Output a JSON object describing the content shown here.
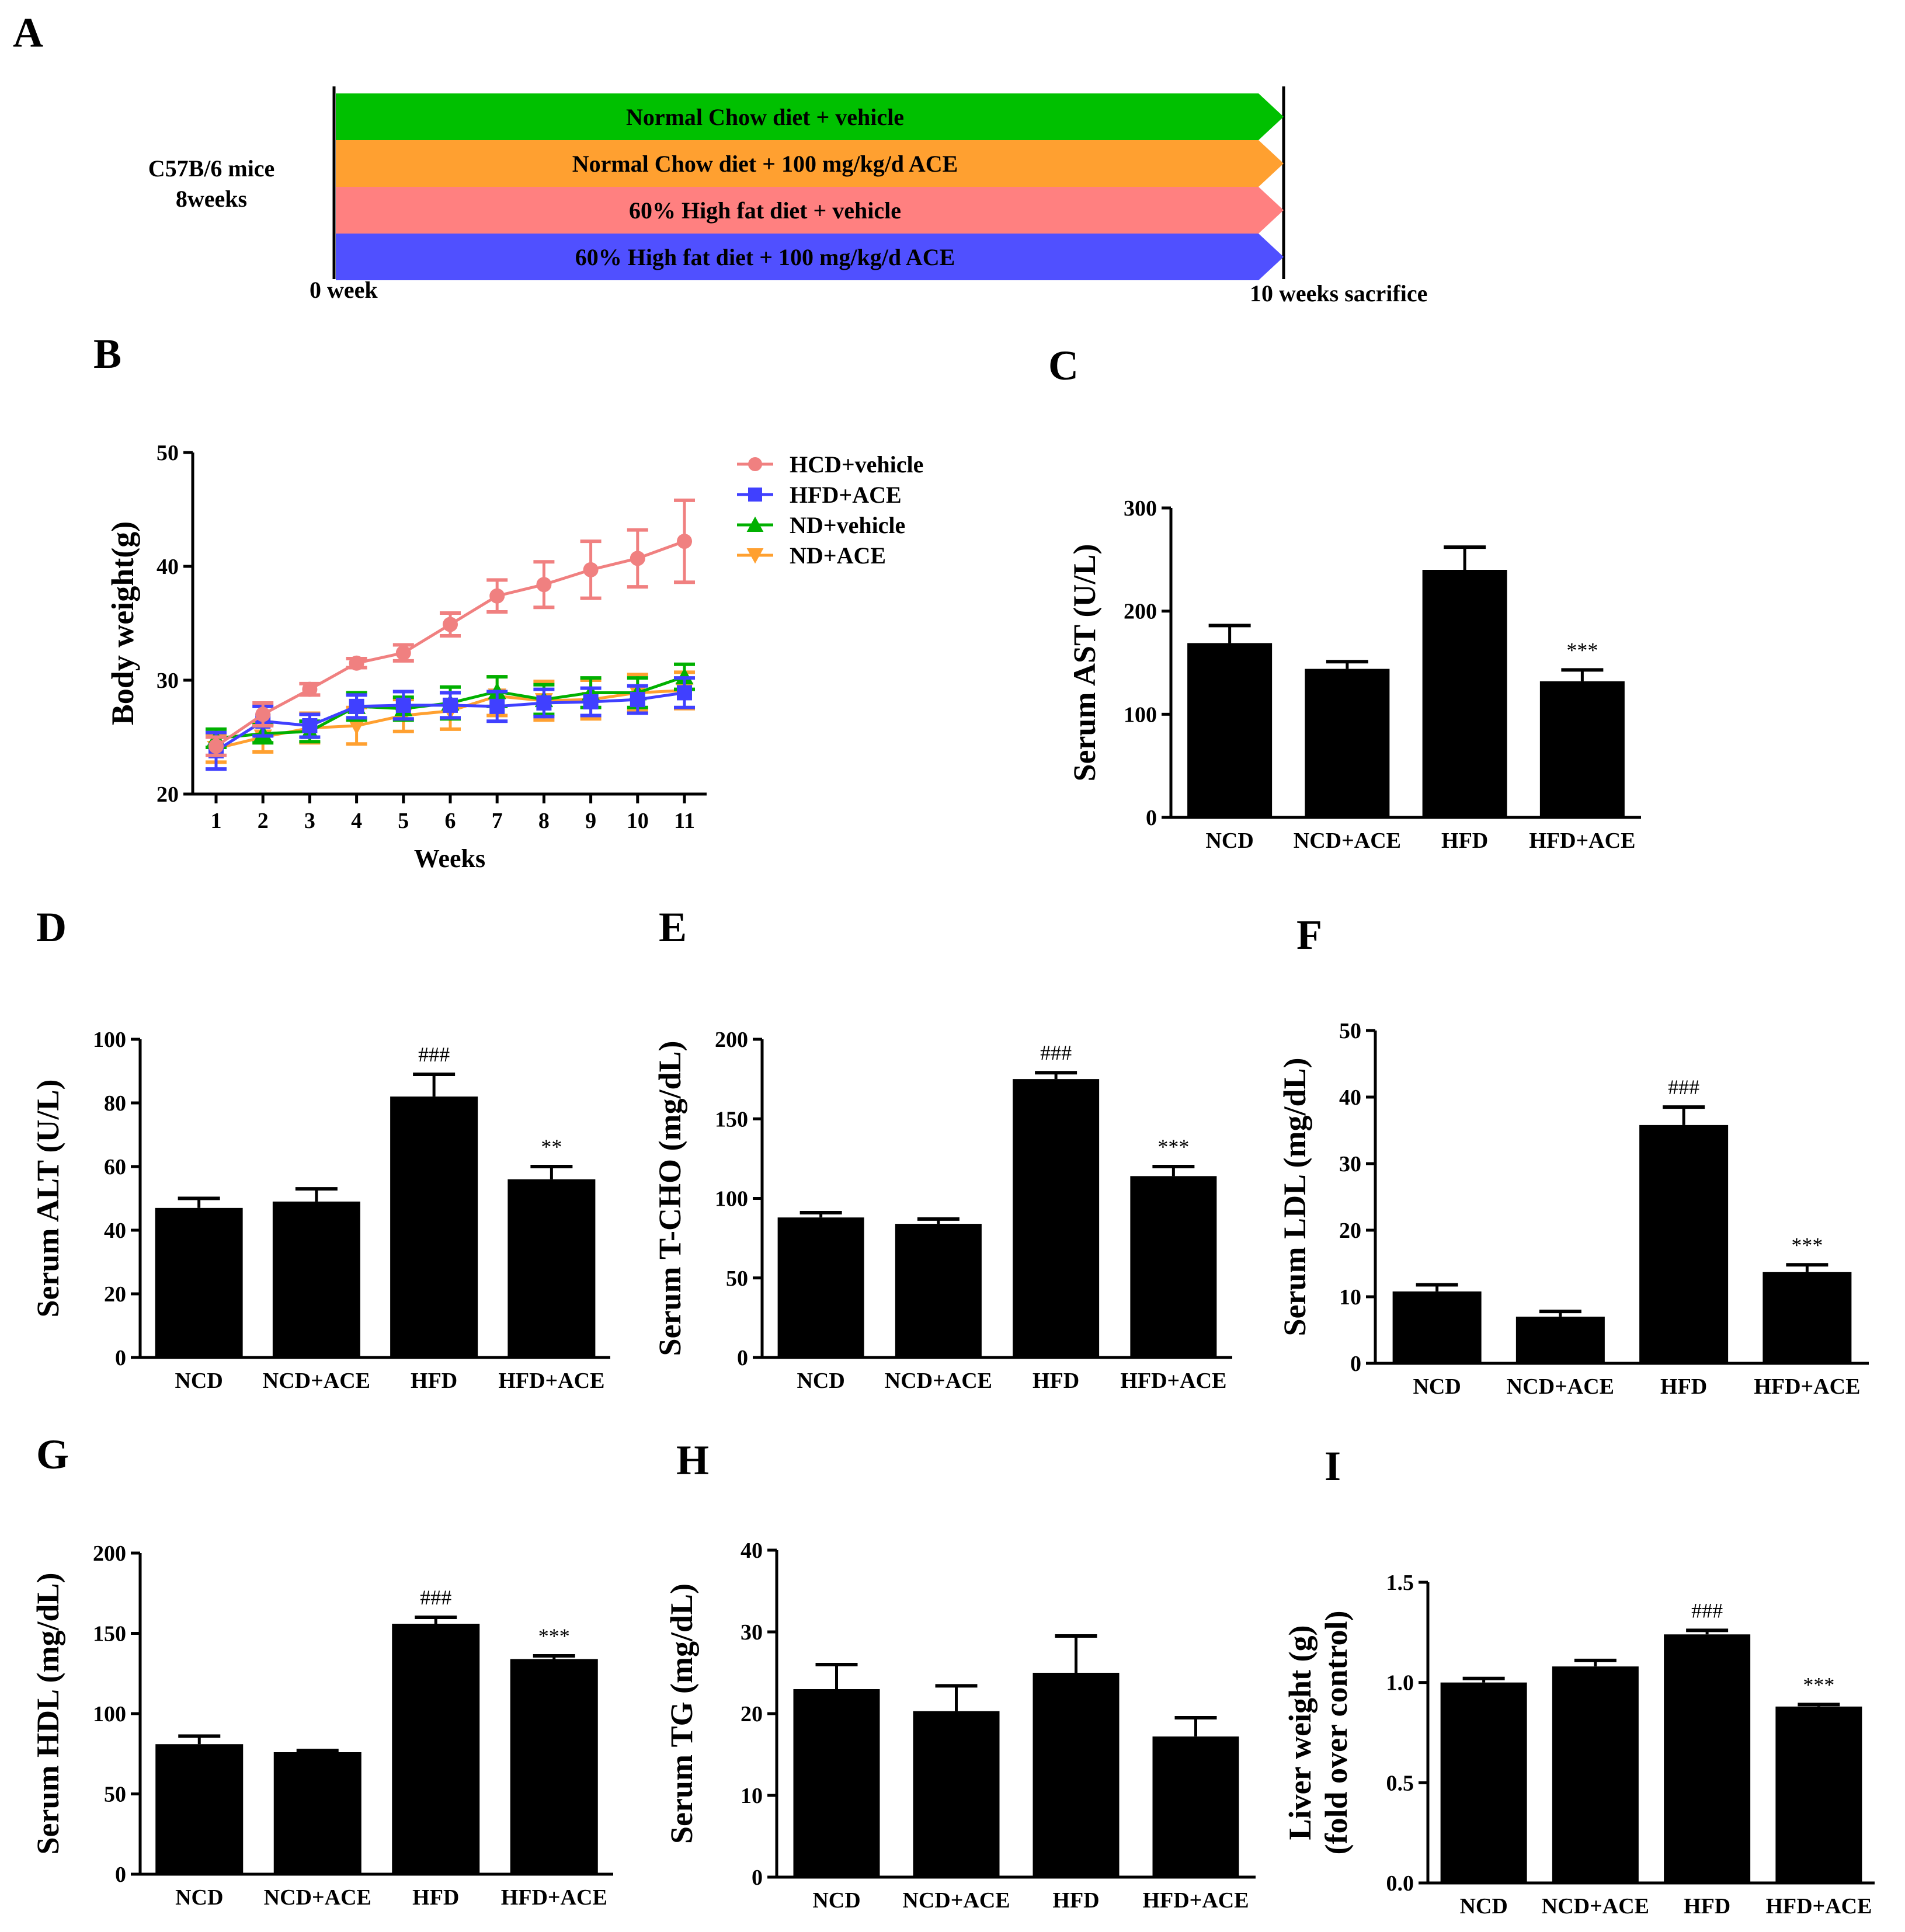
{
  "panel_labels": [
    "A",
    "B",
    "C",
    "D",
    "E",
    "F",
    "G",
    "H",
    "I"
  ],
  "scheme": {
    "subject_line1": "C57B/6 mice",
    "subject_line2": "8weeks",
    "start_label": "0 week",
    "end_label": "10 weeks sacrifice",
    "arrows": [
      {
        "label": "Normal Chow diet + vehicle",
        "color": "#00C000"
      },
      {
        "label": "Normal Chow diet + 100 mg/kg/d ACE",
        "color": "#FFA030"
      },
      {
        "label": "60% High fat diet + vehicle",
        "color": "#FF8080"
      },
      {
        "label": "60% High fat diet + 100 mg/kg/d ACE",
        "color": "#5050FF"
      }
    ]
  },
  "chart_data": [
    {
      "panel": "B",
      "type": "line",
      "xlabel": "Weeks",
      "ylabel": "Body weight(g)",
      "x": [
        1,
        2,
        3,
        4,
        5,
        6,
        7,
        8,
        9,
        10,
        11
      ],
      "xticks": [
        "1",
        "2",
        "3",
        "4",
        "5",
        "6",
        "7",
        "8",
        "9",
        "10",
        "11"
      ],
      "ylim": [
        20,
        50
      ],
      "yticks": [
        "20",
        "30",
        "40",
        "50"
      ],
      "legend_position": "top-right",
      "series": [
        {
          "name": "HCD+vehicle",
          "color": "#F08080",
          "marker": "circle",
          "values": [
            24.2,
            27.0,
            29.2,
            31.5,
            32.4,
            34.9,
            37.4,
            38.4,
            39.7,
            40.7,
            42.2
          ],
          "errors": [
            0.8,
            1.0,
            0.5,
            0.4,
            0.7,
            1.0,
            1.4,
            2.0,
            2.5,
            2.5,
            3.6
          ]
        },
        {
          "name": "HFD+ACE",
          "color": "#4040FF",
          "marker": "square",
          "values": [
            23.8,
            26.4,
            26.0,
            27.7,
            27.8,
            27.8,
            27.7,
            28.0,
            28.1,
            28.3,
            28.9
          ],
          "errors": [
            1.6,
            1.3,
            1.0,
            1.0,
            1.2,
            1.1,
            1.3,
            1.2,
            1.2,
            1.2,
            1.3
          ]
        },
        {
          "name": "ND+vehicle",
          "color": "#00B000",
          "marker": "triangle-up",
          "values": [
            24.9,
            25.3,
            25.5,
            27.7,
            27.5,
            28.0,
            29.0,
            28.3,
            28.9,
            28.9,
            30.3
          ],
          "errors": [
            0.8,
            0.8,
            0.9,
            1.2,
            1.0,
            1.4,
            1.3,
            1.3,
            1.3,
            1.3,
            1.1
          ]
        },
        {
          "name": "ND+ACE",
          "color": "#FFA030",
          "marker": "triangle-down",
          "values": [
            24.0,
            25.0,
            25.8,
            26.0,
            26.9,
            27.3,
            28.6,
            28.2,
            28.3,
            28.9,
            29.1
          ],
          "errors": [
            1.2,
            1.3,
            1.3,
            1.6,
            1.4,
            1.6,
            1.7,
            1.7,
            1.7,
            1.6,
            1.6
          ]
        }
      ]
    },
    {
      "panel": "C",
      "type": "bar",
      "ylabel": "Serum AST (U/L)",
      "categories": [
        "NCD",
        "NCD+ACE",
        "HFD",
        "HFD+ACE"
      ],
      "values": [
        169,
        144,
        240,
        132
      ],
      "errors": [
        17,
        7,
        22,
        11
      ],
      "annotations": [
        "",
        "",
        "",
        "***"
      ],
      "ylim": [
        0,
        300
      ],
      "yticks": [
        "0",
        "100",
        "200",
        "300"
      ]
    },
    {
      "panel": "D",
      "type": "bar",
      "ylabel": "Serum ALT (U/L)",
      "categories": [
        "NCD",
        "NCD+ACE",
        "HFD",
        "HFD+ACE"
      ],
      "values": [
        47,
        49,
        82,
        56
      ],
      "errors": [
        3,
        4,
        7,
        4
      ],
      "annotations": [
        "",
        "",
        "###",
        "**"
      ],
      "ylim": [
        0,
        100
      ],
      "yticks": [
        "0",
        "20",
        "40",
        "60",
        "80",
        "100"
      ]
    },
    {
      "panel": "E",
      "type": "bar",
      "ylabel": "Serum T-CHO (mg/dL)",
      "categories": [
        "NCD",
        "NCD+ACE",
        "HFD",
        "HFD+ACE"
      ],
      "values": [
        88,
        84,
        175,
        114
      ],
      "errors": [
        3,
        3,
        4,
        6
      ],
      "annotations": [
        "",
        "",
        "###",
        "***"
      ],
      "ylim": [
        0,
        200
      ],
      "yticks": [
        "0",
        "50",
        "100",
        "150",
        "200"
      ]
    },
    {
      "panel": "F",
      "type": "bar",
      "ylabel": "Serum LDL (mg/dL)",
      "categories": [
        "NCD",
        "NCD+ACE",
        "HFD",
        "HFD+ACE"
      ],
      "values": [
        10.8,
        7.0,
        35.8,
        13.7
      ],
      "errors": [
        1.0,
        0.8,
        2.7,
        1.1
      ],
      "annotations": [
        "",
        "",
        "###",
        "***"
      ],
      "ylim": [
        0,
        50
      ],
      "yticks": [
        "0",
        "10",
        "20",
        "30",
        "40",
        "50"
      ]
    },
    {
      "panel": "G",
      "type": "bar",
      "ylabel": "Serum HDL (mg/dL)",
      "categories": [
        "NCD",
        "NCD+ACE",
        "HFD",
        "HFD+ACE"
      ],
      "values": [
        81,
        76,
        156,
        134
      ],
      "errors": [
        5,
        1,
        4,
        2
      ],
      "annotations": [
        "",
        "",
        "###",
        "***"
      ],
      "ylim": [
        0,
        200
      ],
      "yticks": [
        "0",
        "50",
        "100",
        "150",
        "200"
      ]
    },
    {
      "panel": "H",
      "type": "bar",
      "ylabel": "Serum TG (mg/dL)",
      "categories": [
        "NCD",
        "NCD+ACE",
        "HFD",
        "HFD+ACE"
      ],
      "values": [
        23,
        20.3,
        25,
        17.2
      ],
      "errors": [
        3,
        3.1,
        4.5,
        2.3
      ],
      "annotations": [
        "",
        "",
        "",
        ""
      ],
      "ylim": [
        0,
        40
      ],
      "yticks": [
        "0",
        "10",
        "20",
        "30",
        "40"
      ]
    },
    {
      "panel": "I",
      "type": "bar",
      "ylabel": "Liver weight (g)",
      "ylabel2": "(fold over control)",
      "categories": [
        "NCD",
        "NCD+ACE",
        "HFD",
        "HFD+ACE"
      ],
      "values": [
        1.0,
        1.08,
        1.24,
        0.88
      ],
      "errors": [
        0.02,
        0.03,
        0.02,
        0.01
      ],
      "annotations": [
        "",
        "",
        "###",
        "***"
      ],
      "ylim": [
        0,
        1.5
      ],
      "yticks": [
        "0.0",
        "0.5",
        "1.0",
        "1.5"
      ]
    }
  ]
}
